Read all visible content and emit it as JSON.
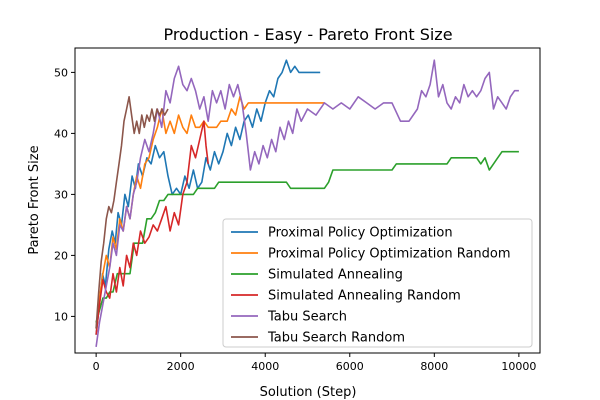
{
  "chart_data": {
    "type": "line",
    "title": "Production - Easy - Pareto Front Size",
    "xlabel": "Solution (Step)",
    "ylabel": "Pareto Front Size",
    "xlim": [
      -500,
      10500
    ],
    "ylim": [
      4,
      54
    ],
    "xticks": [
      0,
      2000,
      4000,
      6000,
      8000,
      10000
    ],
    "yticks": [
      10,
      20,
      30,
      40,
      50
    ],
    "grid": false,
    "legend_position": "lower-right",
    "series": [
      {
        "name": "Proximal Policy Optimization",
        "color": "#1f77b4",
        "points": [
          [
            0,
            7
          ],
          [
            80,
            12
          ],
          [
            150,
            17
          ],
          [
            220,
            15
          ],
          [
            300,
            21
          ],
          [
            380,
            24
          ],
          [
            450,
            22
          ],
          [
            520,
            27
          ],
          [
            600,
            25
          ],
          [
            680,
            30
          ],
          [
            760,
            28
          ],
          [
            850,
            33
          ],
          [
            930,
            31
          ],
          [
            1000,
            35
          ],
          [
            1100,
            33
          ],
          [
            1200,
            36
          ],
          [
            1300,
            35
          ],
          [
            1400,
            38
          ],
          [
            1500,
            36
          ],
          [
            1600,
            37
          ],
          [
            1700,
            33
          ],
          [
            1800,
            30
          ],
          [
            1900,
            31
          ],
          [
            2000,
            30
          ],
          [
            2100,
            33
          ],
          [
            2200,
            31
          ],
          [
            2300,
            34
          ],
          [
            2400,
            31
          ],
          [
            2500,
            32
          ],
          [
            2600,
            36
          ],
          [
            2700,
            34
          ],
          [
            2800,
            37
          ],
          [
            2900,
            35
          ],
          [
            3000,
            37
          ],
          [
            3100,
            40
          ],
          [
            3200,
            38
          ],
          [
            3300,
            41
          ],
          [
            3400,
            39
          ],
          [
            3500,
            42
          ],
          [
            3600,
            43
          ],
          [
            3700,
            41
          ],
          [
            3800,
            44
          ],
          [
            3900,
            42
          ],
          [
            4000,
            45
          ],
          [
            4100,
            47
          ],
          [
            4200,
            46
          ],
          [
            4300,
            49
          ],
          [
            4400,
            50
          ],
          [
            4500,
            52
          ],
          [
            4600,
            50
          ],
          [
            4700,
            51
          ],
          [
            4800,
            50
          ],
          [
            4900,
            50
          ],
          [
            5000,
            50
          ],
          [
            5100,
            50
          ],
          [
            5200,
            50
          ],
          [
            5300,
            50
          ]
        ]
      },
      {
        "name": "Proximal Policy Optimization Random",
        "color": "#ff7f0e",
        "points": [
          [
            0,
            8
          ],
          [
            80,
            13
          ],
          [
            160,
            17
          ],
          [
            240,
            20
          ],
          [
            320,
            18
          ],
          [
            400,
            23
          ],
          [
            480,
            21
          ],
          [
            560,
            26
          ],
          [
            640,
            24
          ],
          [
            720,
            28
          ],
          [
            800,
            26
          ],
          [
            880,
            30
          ],
          [
            960,
            33
          ],
          [
            1050,
            31
          ],
          [
            1150,
            35
          ],
          [
            1250,
            36
          ],
          [
            1350,
            39
          ],
          [
            1450,
            41
          ],
          [
            1550,
            44
          ],
          [
            1650,
            40
          ],
          [
            1750,
            42
          ],
          [
            1850,
            40
          ],
          [
            1950,
            43
          ],
          [
            2050,
            41
          ],
          [
            2150,
            40
          ],
          [
            2250,
            43
          ],
          [
            2350,
            41
          ],
          [
            2450,
            41
          ],
          [
            2550,
            42
          ],
          [
            2650,
            41
          ],
          [
            2750,
            41
          ],
          [
            2850,
            41
          ],
          [
            2950,
            42
          ],
          [
            3100,
            42
          ],
          [
            3200,
            44
          ],
          [
            3300,
            43
          ],
          [
            3400,
            46
          ],
          [
            3500,
            44
          ],
          [
            3600,
            45
          ],
          [
            3800,
            45
          ],
          [
            4000,
            45
          ],
          [
            4200,
            45
          ],
          [
            4400,
            45
          ],
          [
            4600,
            45
          ],
          [
            4800,
            45
          ],
          [
            5000,
            45
          ],
          [
            5200,
            45
          ],
          [
            5400,
            45
          ]
        ]
      },
      {
        "name": "Simulated Annealing",
        "color": "#2ca02c",
        "points": [
          [
            0,
            9
          ],
          [
            80,
            11
          ],
          [
            160,
            13
          ],
          [
            240,
            13
          ],
          [
            320,
            14
          ],
          [
            400,
            14
          ],
          [
            500,
            17
          ],
          [
            600,
            17
          ],
          [
            700,
            17
          ],
          [
            800,
            17
          ],
          [
            900,
            22
          ],
          [
            1000,
            22
          ],
          [
            1100,
            22
          ],
          [
            1200,
            26
          ],
          [
            1300,
            26
          ],
          [
            1400,
            27
          ],
          [
            1500,
            29
          ],
          [
            1600,
            29
          ],
          [
            1700,
            30
          ],
          [
            1800,
            30
          ],
          [
            1900,
            30
          ],
          [
            2000,
            30
          ],
          [
            2100,
            30
          ],
          [
            2200,
            30
          ],
          [
            2300,
            30
          ],
          [
            2400,
            31
          ],
          [
            2500,
            31
          ],
          [
            2600,
            31
          ],
          [
            2700,
            31
          ],
          [
            2800,
            31
          ],
          [
            2900,
            32
          ],
          [
            3000,
            32
          ],
          [
            3200,
            32
          ],
          [
            3500,
            32
          ],
          [
            3800,
            32
          ],
          [
            4100,
            32
          ],
          [
            4500,
            32
          ],
          [
            4600,
            31
          ],
          [
            5000,
            31
          ],
          [
            5400,
            31
          ],
          [
            5500,
            32
          ],
          [
            5600,
            34
          ],
          [
            6000,
            34
          ],
          [
            6500,
            34
          ],
          [
            7000,
            34
          ],
          [
            7100,
            35
          ],
          [
            7500,
            35
          ],
          [
            8000,
            35
          ],
          [
            8300,
            35
          ],
          [
            8400,
            36
          ],
          [
            8800,
            36
          ],
          [
            9000,
            36
          ],
          [
            9100,
            35
          ],
          [
            9200,
            36
          ],
          [
            9300,
            34
          ],
          [
            9400,
            35
          ],
          [
            9500,
            36
          ],
          [
            9600,
            37
          ],
          [
            9800,
            37
          ],
          [
            10000,
            37
          ]
        ]
      },
      {
        "name": "Simulated Annealing Random",
        "color": "#d62728",
        "points": [
          [
            0,
            7
          ],
          [
            80,
            12
          ],
          [
            160,
            16
          ],
          [
            240,
            14
          ],
          [
            320,
            13
          ],
          [
            400,
            17
          ],
          [
            480,
            14
          ],
          [
            560,
            18
          ],
          [
            640,
            15
          ],
          [
            720,
            20
          ],
          [
            800,
            18
          ],
          [
            880,
            22
          ],
          [
            960,
            20
          ],
          [
            1050,
            24
          ],
          [
            1150,
            22
          ],
          [
            1250,
            23
          ],
          [
            1350,
            25
          ],
          [
            1450,
            24
          ],
          [
            1550,
            26
          ],
          [
            1650,
            28
          ],
          [
            1750,
            24
          ],
          [
            1850,
            27
          ],
          [
            1950,
            25
          ],
          [
            2050,
            30
          ],
          [
            2150,
            32
          ],
          [
            2250,
            38
          ],
          [
            2350,
            36
          ],
          [
            2450,
            39
          ],
          [
            2550,
            42
          ],
          [
            2600,
            38
          ],
          [
            2650,
            35
          ]
        ]
      },
      {
        "name": "Tabu Search",
        "color": "#9467bd",
        "points": [
          [
            0,
            5
          ],
          [
            80,
            9
          ],
          [
            160,
            12
          ],
          [
            240,
            15
          ],
          [
            320,
            18
          ],
          [
            400,
            22
          ],
          [
            480,
            20
          ],
          [
            560,
            25
          ],
          [
            640,
            24
          ],
          [
            720,
            28
          ],
          [
            800,
            26
          ],
          [
            880,
            30
          ],
          [
            960,
            32
          ],
          [
            1050,
            36
          ],
          [
            1150,
            39
          ],
          [
            1250,
            37
          ],
          [
            1350,
            40
          ],
          [
            1450,
            44
          ],
          [
            1550,
            41
          ],
          [
            1650,
            47
          ],
          [
            1750,
            45
          ],
          [
            1850,
            49
          ],
          [
            1950,
            51
          ],
          [
            2050,
            48
          ],
          [
            2150,
            47
          ],
          [
            2250,
            49
          ],
          [
            2350,
            47
          ],
          [
            2450,
            44
          ],
          [
            2550,
            46
          ],
          [
            2650,
            42
          ],
          [
            2750,
            47
          ],
          [
            2850,
            45
          ],
          [
            2950,
            47
          ],
          [
            3050,
            44
          ],
          [
            3150,
            48
          ],
          [
            3250,
            46
          ],
          [
            3350,
            48
          ],
          [
            3450,
            45
          ],
          [
            3550,
            40
          ],
          [
            3650,
            34
          ],
          [
            3750,
            37
          ],
          [
            3850,
            35
          ],
          [
            3950,
            38
          ],
          [
            4050,
            36
          ],
          [
            4150,
            39
          ],
          [
            4250,
            37
          ],
          [
            4350,
            41
          ],
          [
            4450,
            39
          ],
          [
            4550,
            42
          ],
          [
            4650,
            40
          ],
          [
            4750,
            44
          ],
          [
            4850,
            42
          ],
          [
            5000,
            44
          ],
          [
            5200,
            43
          ],
          [
            5400,
            45
          ],
          [
            5600,
            44
          ],
          [
            5800,
            45
          ],
          [
            6000,
            44
          ],
          [
            6200,
            46
          ],
          [
            6400,
            45
          ],
          [
            6600,
            44
          ],
          [
            6800,
            45
          ],
          [
            7000,
            45
          ],
          [
            7200,
            42
          ],
          [
            7400,
            42
          ],
          [
            7600,
            44
          ],
          [
            7700,
            47
          ],
          [
            7800,
            46
          ],
          [
            7900,
            48
          ],
          [
            8000,
            52
          ],
          [
            8100,
            46
          ],
          [
            8200,
            48
          ],
          [
            8300,
            45
          ],
          [
            8400,
            44
          ],
          [
            8500,
            46
          ],
          [
            8600,
            45
          ],
          [
            8700,
            48
          ],
          [
            8800,
            46
          ],
          [
            8900,
            47
          ],
          [
            9000,
            46
          ],
          [
            9100,
            47
          ],
          [
            9200,
            49
          ],
          [
            9300,
            50
          ],
          [
            9400,
            44
          ],
          [
            9500,
            46
          ],
          [
            9600,
            45
          ],
          [
            9700,
            44
          ],
          [
            9800,
            46
          ],
          [
            9900,
            47
          ],
          [
            10000,
            47
          ]
        ]
      },
      {
        "name": "Tabu Search Random",
        "color": "#8c564b",
        "points": [
          [
            0,
            8
          ],
          [
            60,
            14
          ],
          [
            120,
            19
          ],
          [
            180,
            22
          ],
          [
            240,
            26
          ],
          [
            300,
            28
          ],
          [
            360,
            27
          ],
          [
            420,
            29
          ],
          [
            480,
            32
          ],
          [
            540,
            35
          ],
          [
            600,
            38
          ],
          [
            660,
            42
          ],
          [
            720,
            44
          ],
          [
            780,
            46
          ],
          [
            840,
            43
          ],
          [
            900,
            40
          ],
          [
            960,
            42
          ],
          [
            1020,
            40
          ],
          [
            1080,
            43
          ],
          [
            1140,
            41
          ],
          [
            1200,
            43
          ],
          [
            1260,
            42
          ],
          [
            1320,
            44
          ],
          [
            1380,
            42
          ],
          [
            1440,
            44
          ],
          [
            1500,
            43
          ],
          [
            1560,
            44
          ],
          [
            1620,
            43
          ],
          [
            1700,
            44
          ]
        ]
      }
    ]
  }
}
